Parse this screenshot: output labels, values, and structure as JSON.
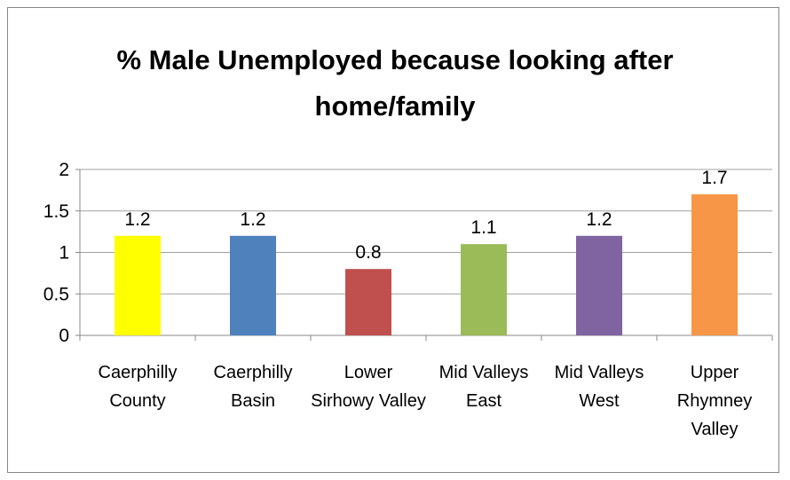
{
  "chart_data": {
    "type": "bar",
    "title": "% Male Unemployed because looking after home/family",
    "categories": [
      "Caerphilly County",
      "Caerphilly Basin",
      "Lower Sirhowy Valley",
      "Mid Valleys East",
      "Mid Valleys West",
      "Upper Rhymney Valley"
    ],
    "values": [
      1.2,
      1.2,
      0.8,
      1.1,
      1.2,
      1.7
    ],
    "colors": [
      "#ffff00",
      "#4f81bd",
      "#c0504d",
      "#9bbb59",
      "#8064a2",
      "#f79646"
    ],
    "ylim": [
      0,
      2
    ],
    "yticks": [
      0,
      0.5,
      1,
      1.5,
      2
    ],
    "grid": true
  }
}
